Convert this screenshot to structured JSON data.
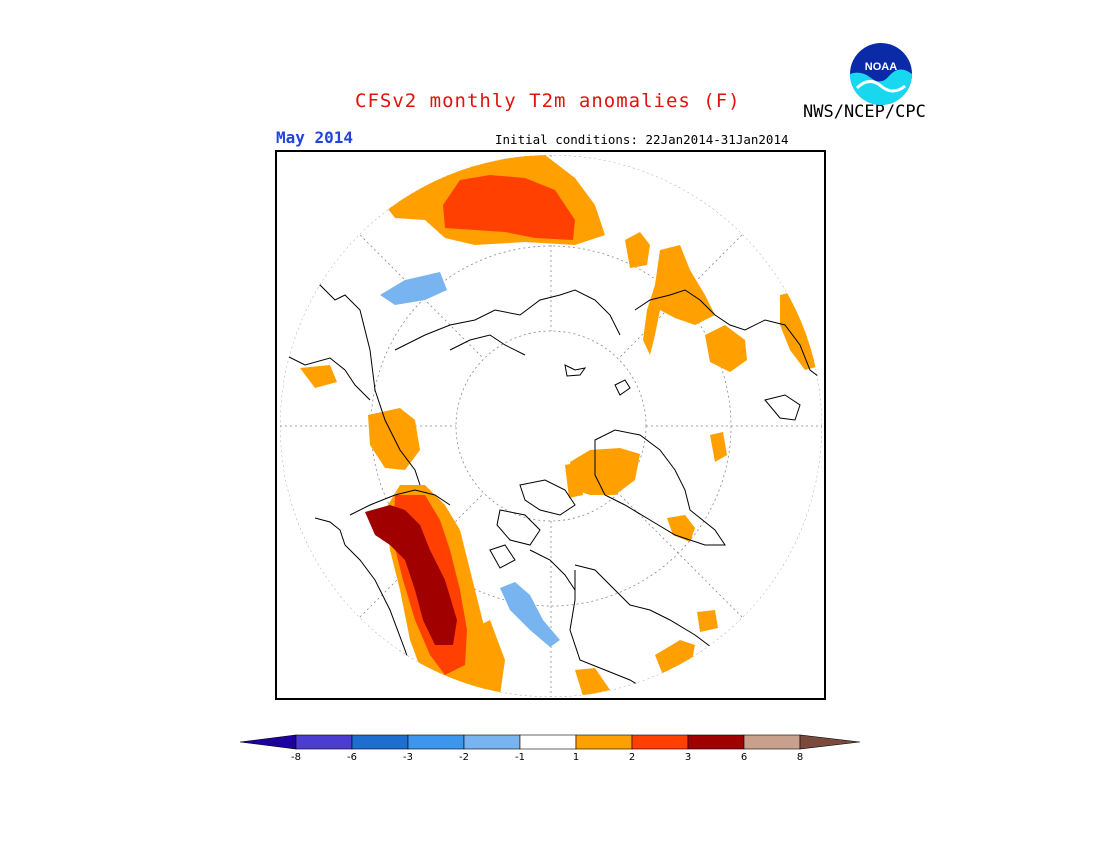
{
  "header": {
    "title": "CFSv2 monthly T2m anomalies (F)",
    "month": "May 2014",
    "initial_conditions": "Initial conditions: 22Jan2014-31Jan2014",
    "agency": "NWS/NCEP/CPC",
    "logo_text": "NOAA"
  },
  "colorbar": {
    "colors": [
      "#1e00a0",
      "#4b3cd2",
      "#1e6ed2",
      "#3c96f0",
      "#78b4f0",
      "#ffffff",
      "#ffa000",
      "#ff4000",
      "#a00000",
      "#c8a08c",
      "#7a4a3c"
    ],
    "labels": [
      "-8",
      "-6",
      "-3",
      "-2",
      "-1",
      "1",
      "2",
      "3",
      "6",
      "8"
    ]
  },
  "legend_colors": {
    "warm_1_2": "#ffa000",
    "warm_2_3": "#ff4000",
    "warm_3_6": "#a00000",
    "cool_1_2": "#78b4f0"
  }
}
